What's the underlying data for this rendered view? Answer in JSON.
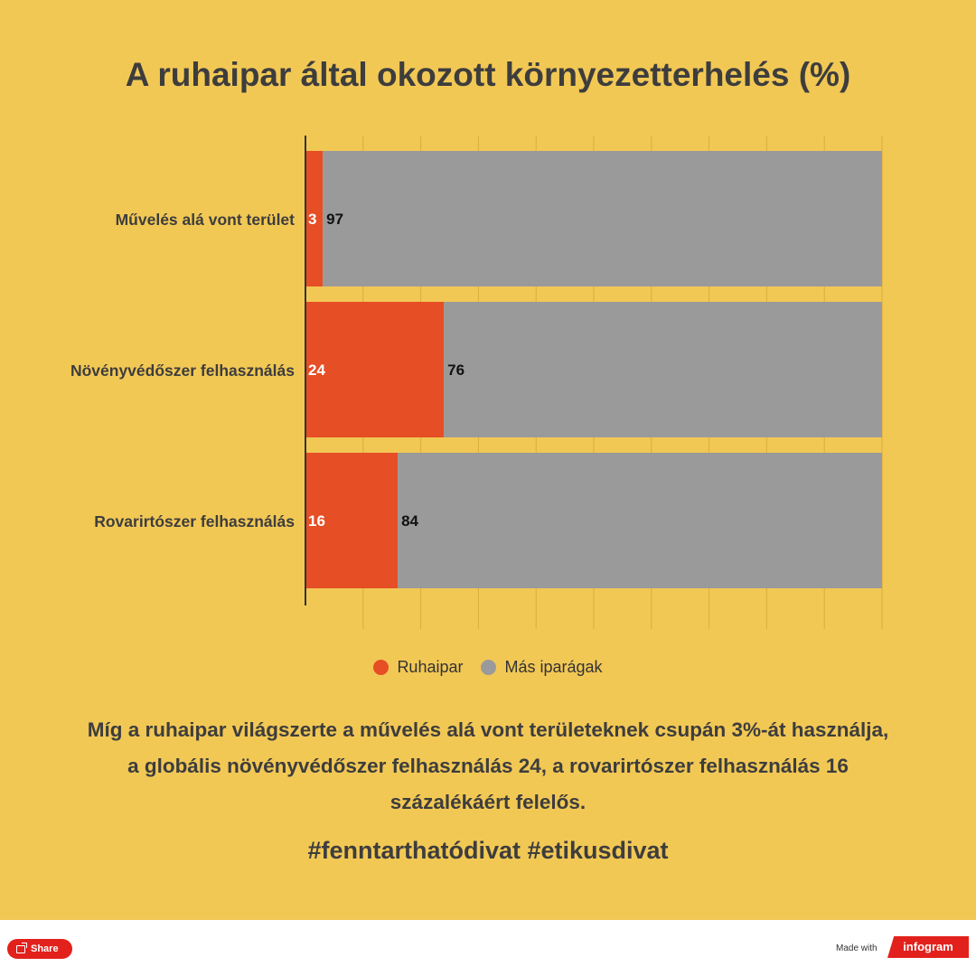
{
  "title": "A ruhaipar által okozott környezetterhelés (%)",
  "colors": {
    "ruhaipar": "#e64e25",
    "mas": "#9a9a9a",
    "background": "#f2c855"
  },
  "chart_data": {
    "type": "bar",
    "orientation": "horizontal",
    "stacked": true,
    "title": "A ruhaipar által okozott környezetterhelés (%)",
    "categories": [
      "Művelés alá vont terület",
      "Növényvédőszer felhasználás",
      "Rovarirtószer felhasználás"
    ],
    "series": [
      {
        "name": "Ruhaipar",
        "values": [
          3,
          24,
          16
        ]
      },
      {
        "name": "Más iparágak",
        "values": [
          97,
          76,
          84
        ]
      }
    ],
    "xticks": [
      "0%",
      "10%",
      "20%",
      "30%",
      "40%",
      "50%",
      "60%",
      "70%",
      "80%",
      "90%",
      "100%"
    ],
    "xlim": [
      0,
      100
    ],
    "grid": true,
    "legend_position": "bottom"
  },
  "legend": {
    "item1": "Ruhaipar",
    "item2": "Más iparágak"
  },
  "description": "Míg a ruhaipar világszerte a művelés alá vont területeknek csupán 3%-át használja, a globális  növényvédőszer felhasználás 24, a rovarirtószer felhasználás 16 százalékáért felelős.",
  "hashtags": "#fenntarthatódivat #etikusdivat",
  "footer": {
    "share": "Share",
    "made_with": "Made with",
    "brand": "infogram"
  }
}
